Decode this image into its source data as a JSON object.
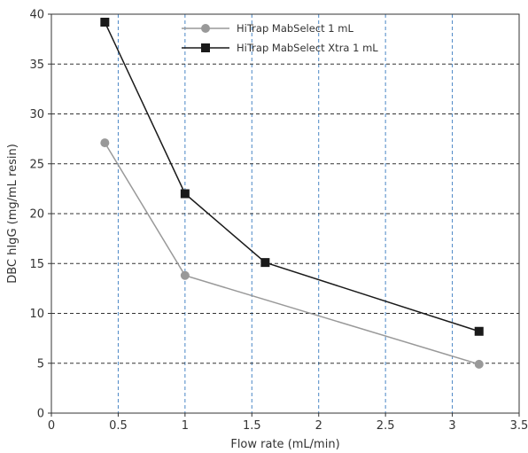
{
  "chart_data": {
    "type": "line",
    "xlabel": "Flow rate (mL/min)",
    "ylabel": "DBC hIgG (mg/mL resin)",
    "xlim": [
      0,
      3.5
    ],
    "ylim": [
      0,
      40
    ],
    "xticks": [
      "0",
      "0.5",
      "1",
      "1.5",
      "2",
      "2.5",
      "3",
      "3.5"
    ],
    "yticks": [
      "0",
      "5",
      "10",
      "15",
      "20",
      "25",
      "30",
      "35",
      "40"
    ],
    "grid": {
      "x": true,
      "y": true
    },
    "legend_position": "top-center",
    "series": [
      {
        "name": "HiTrap MabSelect 1 mL",
        "marker": "circle",
        "color": "#999999",
        "x": [
          0.4,
          1.0,
          3.2
        ],
        "y": [
          27.1,
          13.8,
          4.9
        ]
      },
      {
        "name": "HiTrap MabSelect Xtra 1 mL",
        "marker": "square",
        "color": "#1a1a1a",
        "x": [
          0.4,
          1.0,
          1.6,
          3.2
        ],
        "y": [
          39.2,
          22.0,
          15.1,
          8.2
        ]
      }
    ]
  },
  "colors": {
    "x_grid": "#4a86c5",
    "y_grid": "#333333",
    "axis": "#333333"
  }
}
